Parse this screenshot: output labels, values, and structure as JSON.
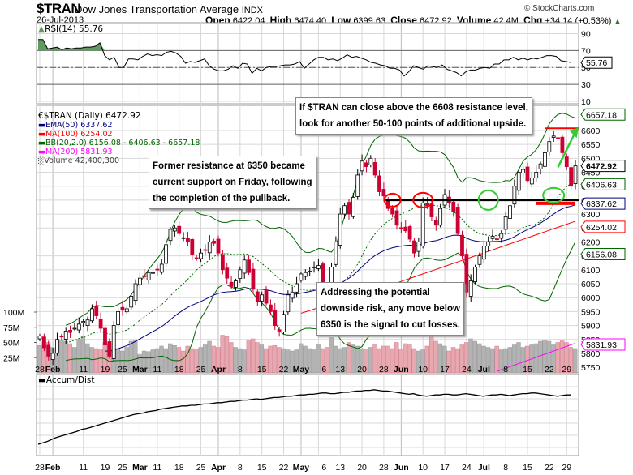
{
  "header": {
    "symbol": "$TRAN",
    "name": "Dow Jones Transportation Average",
    "exchange": "INDX",
    "date": "26-Jul-2013",
    "copyright": "© StockCharts.com",
    "open_label": "Open",
    "open": "6422.04",
    "high_label": "High",
    "high": "6474.40",
    "low_label": "Low",
    "low": "6399.63",
    "close_label": "Close",
    "close": "6472.92",
    "volume_label": "Volume",
    "volume": "42.4M",
    "chg_label": "Chg",
    "chg": "+34.14 (+0.53%)",
    "chg_icon": "up-triangle-icon"
  },
  "legend": {
    "rsi": "RSI(14) 55.76",
    "price": "$TRAN (Daily) 6472.92",
    "ema50": "EMA(50) 6337.62",
    "ma100": "MA(100) 6254.02",
    "bb": "BB(20,2.0) 6156.08 - 6406.63 - 6657.18",
    "ma200": "MA(200) 5831.93",
    "volume": "Volume 42,400,300",
    "accum": "Accum/Dist"
  },
  "callouts": {
    "resistance": [
      "If $TRAN can close above the 6608 resistance level,",
      "look for another 50-100 points of additional upside."
    ],
    "support": [
      "Former resistance at 6350 became",
      "current support on Friday, following",
      "the completion of the pullback."
    ],
    "risk": [
      "Addressing the potential",
      "downside risk, any move below",
      "6350 is the signal to cut losses."
    ]
  },
  "colors": {
    "up": "#ffffff",
    "down": "#cc0033",
    "ema50": "#000080",
    "ma100": "#ff0000",
    "bb": "#006600",
    "ma200": "#ff00ff",
    "vol_up": "#b3b3b3",
    "vol_down": "#e8a8b0",
    "rsi_fill": "#5f9a5f",
    "grid": "#d8d8d8",
    "support": "#000000",
    "resistance": "#ff0000",
    "circle_red": "#ff0000",
    "circle_green": "#33cc33",
    "arrow": "#33cc33"
  },
  "chart_data": [
    {
      "type": "line",
      "title": "RSI(14)",
      "ylim": [
        10,
        100
      ],
      "yticks": [
        "90",
        "70",
        "50",
        "30",
        "10"
      ],
      "reference_lines": [
        70,
        50,
        30
      ],
      "last_value_tag": "55.76",
      "values": [
        83,
        83,
        72,
        73,
        74,
        71,
        73,
        72,
        73,
        73,
        74,
        74,
        75,
        79,
        64,
        59,
        62,
        50,
        50,
        60,
        60,
        59,
        63,
        66,
        64,
        65,
        64,
        68,
        69,
        67,
        63,
        55,
        57,
        56,
        58,
        60,
        52,
        48,
        46,
        46,
        48,
        52,
        49,
        55,
        54,
        43,
        49,
        46,
        50,
        51,
        51,
        52,
        53,
        53,
        54,
        57,
        49,
        54,
        59,
        62,
        62,
        59,
        60,
        58,
        61,
        65,
        62,
        63,
        61,
        59,
        56,
        55,
        53,
        52,
        49,
        49,
        47,
        40,
        45,
        52,
        50,
        48,
        52,
        51,
        50,
        53,
        48,
        46,
        44,
        40,
        45,
        47,
        47,
        49,
        50,
        49,
        54,
        54,
        59,
        59,
        62,
        59,
        61,
        59,
        61,
        60,
        62,
        64,
        64,
        63,
        58,
        57,
        56
      ]
    },
    {
      "type": "candlestick",
      "title": "$TRAN (Daily) 6472.92",
      "ylim": [
        5730,
        6690
      ],
      "yticks": [
        "6600",
        "6550",
        "6500",
        "6450",
        "6400",
        "6350",
        "6300",
        "6250",
        "6200",
        "6150",
        "6100",
        "6050",
        "6000",
        "5950",
        "5900",
        "5850",
        "5800",
        "5750"
      ],
      "last_value_tags": [
        {
          "label": "6657.18",
          "value": 6657.18,
          "series": "bb_upper"
        },
        {
          "label": "6472.92",
          "value": 6472.92,
          "series": "close"
        },
        {
          "label": "6406.63",
          "value": 6406.63,
          "series": "bb_mid"
        },
        {
          "label": "6337.62",
          "value": 6337.62,
          "series": "ema50"
        },
        {
          "label": "6254.02",
          "value": 6254.02,
          "series": "ma100"
        },
        {
          "label": "6156.08",
          "value": 6156.08,
          "series": "bb_lower"
        },
        {
          "label": "5831.93",
          "value": 5831.93,
          "series": "ma200"
        }
      ],
      "x_ticks": [
        "28",
        "Feb",
        "11",
        "19",
        "25",
        "Mar",
        "11",
        "18",
        "25",
        "Apr",
        "8",
        "15",
        "22",
        "May",
        "6",
        "13",
        "20",
        "28",
        "Jun",
        "10",
        "17",
        "24",
        "Jul",
        "8",
        "15",
        "22",
        "29"
      ],
      "x_ticks_bold": [
        "Feb",
        "Mar",
        "Apr",
        "May",
        "Jun",
        "Jul"
      ],
      "support_level": 6350,
      "resistance_level": 6608,
      "closes": [
        5862,
        5820,
        5790,
        5800,
        5850,
        5860,
        5880,
        5875,
        5890,
        5905,
        5915,
        5920,
        5960,
        5935,
        5890,
        5830,
        5790,
        5900,
        5950,
        5955,
        5960,
        6005,
        6050,
        6070,
        6075,
        6090,
        6090,
        6100,
        6120,
        6190,
        6245,
        6250,
        6230,
        6215,
        6200,
        6155,
        6140,
        6160,
        6170,
        6200,
        6195,
        6160,
        6100,
        6070,
        6040,
        6060,
        6100,
        6135,
        6090,
        6030,
        5985,
        6010,
        5980,
        5950,
        5900,
        5880,
        5940,
        6010,
        6020,
        6050,
        6085,
        6090,
        6095,
        6110,
        6115,
        6050,
        6020,
        6110,
        6200,
        6300,
        6330,
        6300,
        6360,
        6440,
        6490,
        6470,
        6500,
        6440,
        6380,
        6365,
        6320,
        6300,
        6260,
        6250,
        6240,
        6210,
        6160,
        6200,
        6340,
        6330,
        6290,
        6260,
        6320,
        6370,
        6340,
        6310,
        6230,
        6150,
        6020,
        6060,
        6110,
        6150,
        6185,
        6200,
        6220,
        6210,
        6230,
        6290,
        6330,
        6400,
        6450,
        6460,
        6420,
        6430,
        6450,
        6480,
        6520,
        6560,
        6580,
        6570,
        6520,
        6470,
        6400,
        6473
      ],
      "volume": {
        "ylim_label_ticks": [
          "100M",
          "75M",
          "50M",
          "25M"
        ],
        "values_m": [
          45,
          52,
          50,
          42,
          30,
          54,
          52,
          48,
          42,
          55,
          60,
          48,
          42,
          40,
          38,
          50,
          48,
          38,
          40,
          36,
          42,
          52,
          54,
          30,
          36,
          35,
          38,
          40,
          44,
          40,
          48,
          45,
          42,
          36,
          44,
          40,
          38,
          42,
          46,
          52,
          44,
          42,
          62,
          60,
          50,
          42,
          40,
          38,
          54,
          56,
          50,
          46,
          40,
          44,
          45,
          42,
          40,
          38,
          36,
          38,
          48,
          44,
          40,
          38,
          46,
          40,
          42,
          58,
          44,
          40,
          42,
          50,
          46,
          44,
          40,
          38,
          42,
          46,
          40,
          44,
          44,
          40,
          50,
          38,
          48,
          46,
          40,
          36,
          38,
          44,
          60,
          52,
          48,
          44,
          36,
          42,
          40,
          46,
          50,
          56,
          52,
          48,
          44,
          42,
          40,
          44,
          38,
          40,
          42,
          46,
          50,
          42,
          44,
          46,
          48,
          52,
          54,
          52,
          46,
          50,
          54,
          50,
          42
        ]
      }
    },
    {
      "type": "line",
      "title": "Accum/Dist",
      "values": [
        10,
        12,
        14,
        17,
        20,
        22,
        24,
        26,
        28,
        30,
        33,
        34,
        36,
        38,
        40,
        42,
        44,
        46,
        48,
        50,
        52,
        54,
        56,
        57,
        58,
        60,
        61,
        62,
        64,
        65,
        66,
        67,
        68,
        69,
        69,
        70,
        70,
        71,
        72,
        72,
        73,
        74,
        74,
        75,
        76,
        76,
        77,
        78,
        78,
        79,
        80,
        79,
        80,
        81,
        82,
        82,
        83,
        84,
        84,
        85,
        86,
        86,
        87,
        87,
        88,
        89,
        89,
        88,
        88,
        89,
        90,
        90,
        91,
        92,
        92,
        93,
        93,
        94,
        93,
        92,
        92,
        91,
        90,
        89,
        88,
        87,
        88,
        86,
        85,
        84,
        85,
        86,
        86,
        87,
        87,
        86,
        86,
        87,
        88,
        87,
        86,
        85,
        84,
        85,
        86,
        86,
        87,
        86,
        85,
        86,
        87,
        88,
        88,
        89,
        89,
        88,
        87,
        86,
        85,
        84,
        85,
        86,
        86
      ]
    }
  ]
}
